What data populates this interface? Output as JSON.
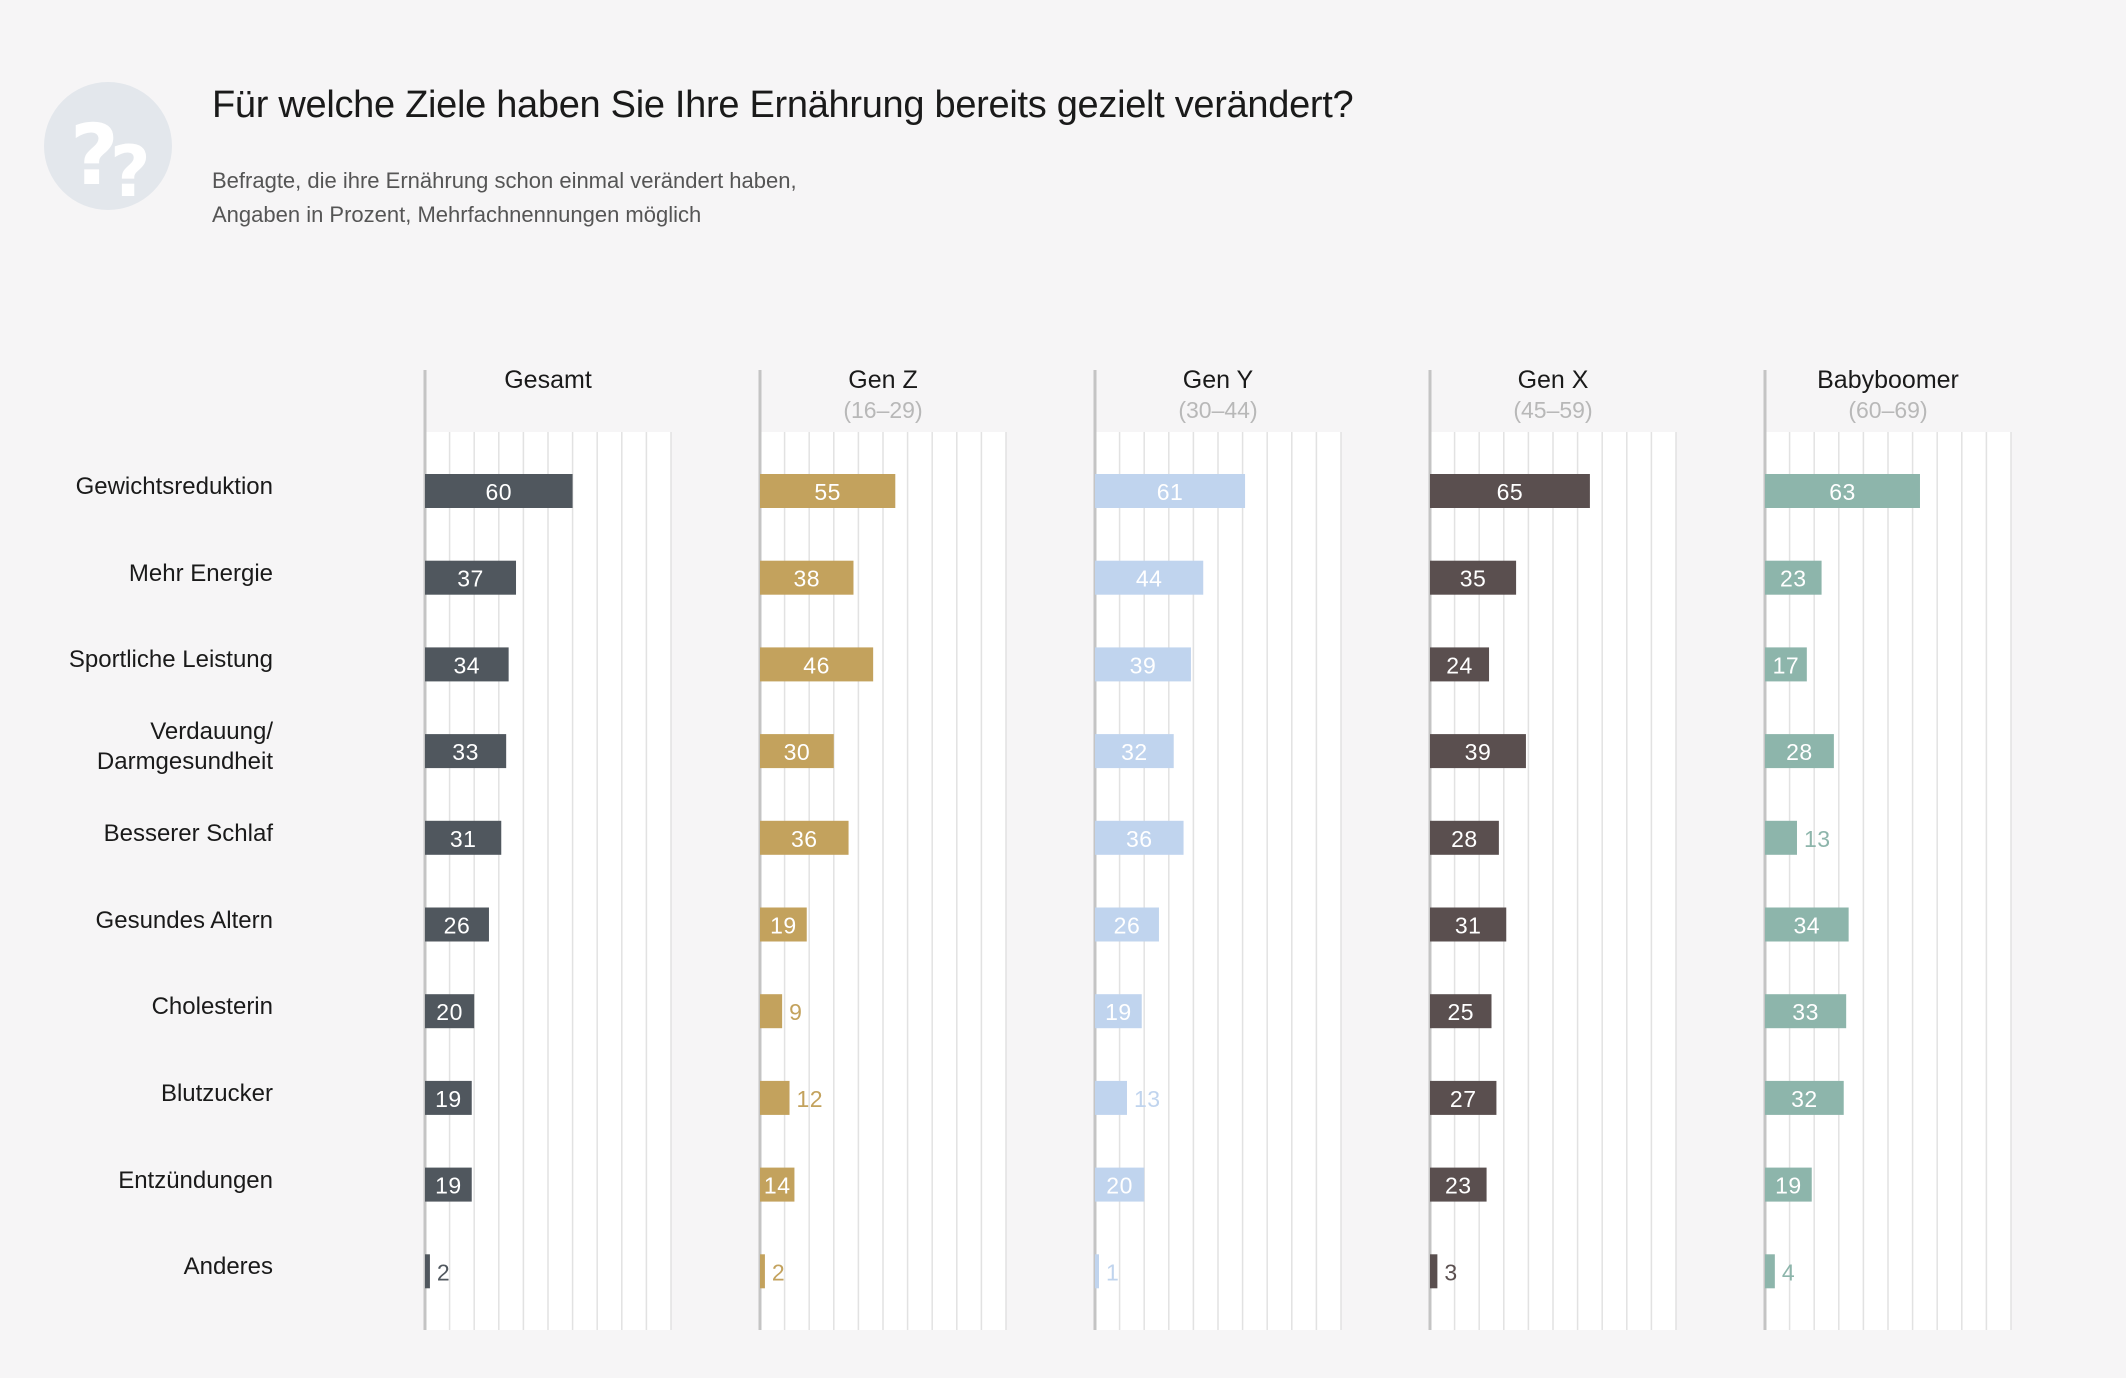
{
  "title": "Für welche Ziele haben Sie Ihre Ernährung bereits gezielt verändert?",
  "subtitle_lines": [
    "Befragte, die ihre Ernährung schon einmal verändert haben,",
    "Angaben in Prozent, Mehrfachnennungen möglich"
  ],
  "icon": "question-marks-icon",
  "chart_data": {
    "type": "bar",
    "orientation": "horizontal",
    "categories": [
      "Gewichtsreduktion",
      "Mehr Energie",
      "Sportliche Leistung",
      "Verdauung/\nDarmgesundheit",
      "Besserer Schlaf",
      "Gesundes Altern",
      "Cholesterin",
      "Blutzucker",
      "Entzündungen",
      "Anderes"
    ],
    "series": [
      {
        "name": "Gesamt",
        "range": "",
        "color": "#50575e",
        "label_color": "#ffffff",
        "values": [
          60,
          37,
          34,
          33,
          31,
          26,
          20,
          19,
          19,
          2
        ]
      },
      {
        "name": "Gen Z",
        "range": "(16–29)",
        "color": "#c3a25d",
        "label_color": "#ffffff",
        "values": [
          55,
          38,
          46,
          30,
          36,
          19,
          9,
          12,
          14,
          2
        ]
      },
      {
        "name": "Gen Y",
        "range": "(30–44)",
        "color": "#c0d4ee",
        "label_color": "#ffffff",
        "values": [
          61,
          44,
          39,
          32,
          36,
          26,
          19,
          13,
          20,
          1
        ]
      },
      {
        "name": "Gen X",
        "range": "(45–59)",
        "color": "#5a4f4f",
        "label_color": "#ffffff",
        "values": [
          65,
          35,
          24,
          39,
          28,
          31,
          25,
          27,
          23,
          3
        ]
      },
      {
        "name": "Babyboomer",
        "range": "(60–69)",
        "color": "#8db5ab",
        "label_color": "#ffffff",
        "values": [
          63,
          23,
          17,
          28,
          13,
          34,
          33,
          32,
          19,
          4
        ]
      }
    ],
    "xlim": [
      0,
      100
    ],
    "gridline_step": 10,
    "grid": true,
    "value_labels": true
  }
}
